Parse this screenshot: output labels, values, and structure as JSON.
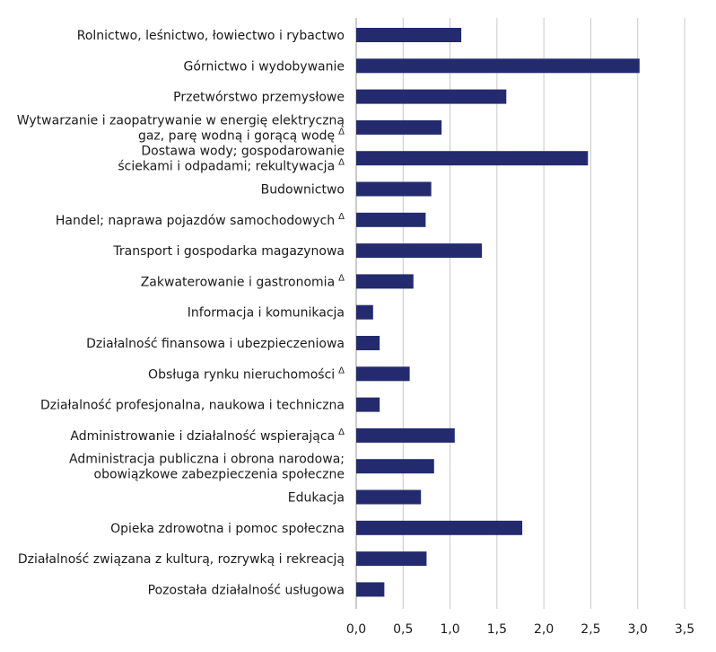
{
  "chart_data": {
    "type": "bar",
    "orientation": "horizontal",
    "title": "",
    "xlabel": "",
    "ylabel": "",
    "xlim": [
      0,
      3.5
    ],
    "grid": true,
    "legend": "none",
    "bar_color": "#232B6E",
    "grid_color": "#c8c8c8",
    "x_ticks": [
      "0,0",
      "0,5",
      "1,0",
      "1,5",
      "2,0",
      "2,5",
      "3,0",
      "3,5"
    ],
    "categories": [
      {
        "lines": [
          "Rolnictwo, leśnictwo, łowiectwo i rybactwo"
        ],
        "marker": ""
      },
      {
        "lines": [
          "Górnictwo i wydobywanie"
        ],
        "marker": ""
      },
      {
        "lines": [
          "Przetwórstwo przemysłowe"
        ],
        "marker": ""
      },
      {
        "lines": [
          "Wytwarzanie i zaopatrywanie w energię elektryczną",
          "gaz, parę wodną i gorącą wodę"
        ],
        "marker": "Δ"
      },
      {
        "lines": [
          "Dostawa wody; gospodarowanie",
          "ściekami i odpadami; rekultywacja"
        ],
        "marker": "Δ"
      },
      {
        "lines": [
          "Budownictwo"
        ],
        "marker": ""
      },
      {
        "lines": [
          "Handel; naprawa pojazdów samochodowych"
        ],
        "marker": "Δ"
      },
      {
        "lines": [
          "Transport i gospodarka magazynowa"
        ],
        "marker": ""
      },
      {
        "lines": [
          "Zakwaterowanie i gastronomia"
        ],
        "marker": "Δ"
      },
      {
        "lines": [
          "Informacja i komunikacja"
        ],
        "marker": ""
      },
      {
        "lines": [
          "Działalność finansowa i ubezpieczeniowa"
        ],
        "marker": ""
      },
      {
        "lines": [
          "Obsługa rynku nieruchomości"
        ],
        "marker": "Δ"
      },
      {
        "lines": [
          "Działalność profesjonalna, naukowa i techniczna"
        ],
        "marker": ""
      },
      {
        "lines": [
          "Administrowanie i działalność wspierająca"
        ],
        "marker": "Δ"
      },
      {
        "lines": [
          "Administracja publiczna i obrona narodowa;",
          "obowiązkowe zabezpieczenia społeczne"
        ],
        "marker": ""
      },
      {
        "lines": [
          "Edukacja"
        ],
        "marker": ""
      },
      {
        "lines": [
          "Opieka zdrowotna i pomoc społeczna"
        ],
        "marker": ""
      },
      {
        "lines": [
          "Działalność związana z kulturą, rozrywką i rekreacją"
        ],
        "marker": ""
      },
      {
        "lines": [
          "Pozostała działalność usługowa"
        ],
        "marker": ""
      }
    ],
    "values": [
      1.12,
      3.02,
      1.6,
      0.91,
      2.47,
      0.8,
      0.74,
      1.34,
      0.61,
      0.18,
      0.25,
      0.57,
      0.25,
      1.05,
      0.83,
      0.69,
      1.77,
      0.75,
      0.3
    ]
  }
}
